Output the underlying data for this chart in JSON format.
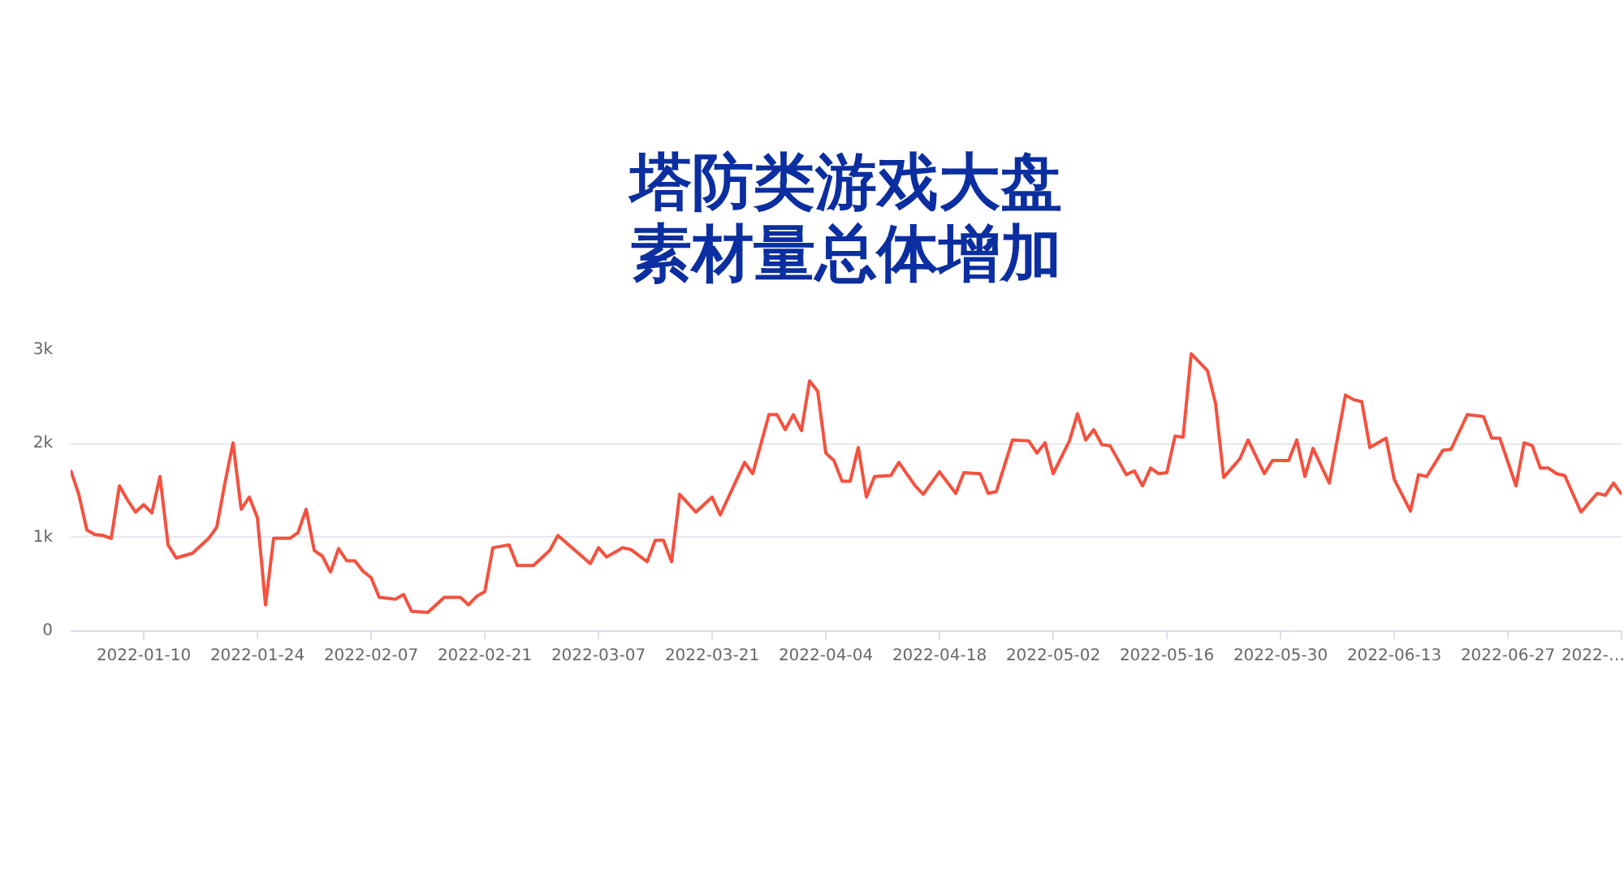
{
  "chart_data": {
    "type": "line",
    "title": "塔防类游戏大盘素材量总体增加",
    "x": [
      "2022-01-01",
      "2022-01-02",
      "2022-01-03",
      "2022-01-04",
      "2022-01-05",
      "2022-01-06",
      "2022-01-07",
      "2022-01-08",
      "2022-01-09",
      "2022-01-10",
      "2022-01-11",
      "2022-01-12",
      "2022-01-13",
      "2022-01-14",
      "2022-01-16",
      "2022-01-18",
      "2022-01-19",
      "2022-01-20",
      "2022-01-21",
      "2022-01-22",
      "2022-01-23",
      "2022-01-24",
      "2022-01-25",
      "2022-01-26",
      "2022-01-28",
      "2022-01-29",
      "2022-01-30",
      "2022-01-31",
      "2022-02-01",
      "2022-02-02",
      "2022-02-03",
      "2022-02-04",
      "2022-02-05",
      "2022-02-06",
      "2022-02-07",
      "2022-02-08",
      "2022-02-10",
      "2022-02-11",
      "2022-02-12",
      "2022-02-14",
      "2022-02-16",
      "2022-02-18",
      "2022-02-19",
      "2022-02-20",
      "2022-02-21",
      "2022-02-22",
      "2022-02-24",
      "2022-02-25",
      "2022-02-27",
      "2022-03-01",
      "2022-03-02",
      "2022-03-06",
      "2022-03-07",
      "2022-03-08",
      "2022-03-10",
      "2022-03-11",
      "2022-03-13",
      "2022-03-14",
      "2022-03-15",
      "2022-03-16",
      "2022-03-17",
      "2022-03-19",
      "2022-03-21",
      "2022-03-22",
      "2022-03-25",
      "2022-03-26",
      "2022-03-28",
      "2022-03-29",
      "2022-03-30",
      "2022-03-31",
      "2022-04-01",
      "2022-04-02",
      "2022-04-03",
      "2022-04-04",
      "2022-04-05",
      "2022-04-06",
      "2022-04-07",
      "2022-04-08",
      "2022-04-09",
      "2022-04-10",
      "2022-04-12",
      "2022-04-13",
      "2022-04-15",
      "2022-04-16",
      "2022-04-18",
      "2022-04-20",
      "2022-04-21",
      "2022-04-23",
      "2022-04-24",
      "2022-04-25",
      "2022-04-27",
      "2022-04-29",
      "2022-04-30",
      "2022-05-01",
      "2022-05-02",
      "2022-05-04",
      "2022-05-05",
      "2022-05-06",
      "2022-05-07",
      "2022-05-08",
      "2022-05-09",
      "2022-05-11",
      "2022-05-12",
      "2022-05-13",
      "2022-05-14",
      "2022-05-15",
      "2022-05-16",
      "2022-05-17",
      "2022-05-18",
      "2022-05-19",
      "2022-05-21",
      "2022-05-22",
      "2022-05-23",
      "2022-05-25",
      "2022-05-26",
      "2022-05-28",
      "2022-05-29",
      "2022-05-31",
      "2022-06-01",
      "2022-06-02",
      "2022-06-03",
      "2022-06-05",
      "2022-06-07",
      "2022-06-08",
      "2022-06-09",
      "2022-06-10",
      "2022-06-12",
      "2022-06-13",
      "2022-06-15",
      "2022-06-16",
      "2022-06-17",
      "2022-06-19",
      "2022-06-20",
      "2022-06-22",
      "2022-06-24",
      "2022-06-25",
      "2022-06-26",
      "2022-06-28",
      "2022-06-29",
      "2022-06-30",
      "2022-07-01",
      "2022-07-02",
      "2022-07-03",
      "2022-07-04",
      "2022-07-06",
      "2022-07-08",
      "2022-07-09",
      "2022-07-10",
      "2022-07-11"
    ],
    "series": [
      {
        "color": "#f4513f",
        "values": [
          1720,
          1460,
          1080,
          1030,
          1020,
          990,
          1550,
          1400,
          1270,
          1350,
          1260,
          1650,
          920,
          780,
          830,
          990,
          1110,
          1580,
          2010,
          1300,
          1430,
          1210,
          280,
          990,
          990,
          1050,
          1300,
          860,
          800,
          630,
          880,
          750,
          750,
          640,
          570,
          360,
          340,
          390,
          210,
          200,
          360,
          360,
          280,
          370,
          420,
          890,
          920,
          700,
          700,
          860,
          1020,
          720,
          890,
          790,
          890,
          870,
          740,
          970,
          970,
          740,
          1460,
          1270,
          1430,
          1240,
          1800,
          1680,
          2310,
          2310,
          2150,
          2310,
          2140,
          2670,
          2560,
          1900,
          1820,
          1600,
          1600,
          1960,
          1430,
          1650,
          1660,
          1800,
          1550,
          1460,
          1700,
          1470,
          1690,
          1680,
          1470,
          1490,
          2040,
          2030,
          1900,
          2010,
          1680,
          2030,
          2320,
          2040,
          2150,
          1990,
          1980,
          1670,
          1710,
          1550,
          1740,
          1680,
          1690,
          2080,
          2070,
          2960,
          2780,
          2430,
          1640,
          1840,
          2040,
          1680,
          1820,
          1820,
          2040,
          1650,
          1950,
          1580,
          2520,
          2470,
          2450,
          1960,
          2060,
          1620,
          1280,
          1670,
          1650,
          1930,
          1940,
          2310,
          2290,
          2060,
          2060,
          1550,
          2010,
          1980,
          1740,
          1740,
          1680,
          1660,
          1270,
          1470,
          1450,
          1580,
          1460
        ]
      }
    ],
    "xlim": [
      "2022-01-01",
      "2022-07-11"
    ],
    "xticks": [
      "2022-01-10",
      "2022-01-24",
      "2022-02-07",
      "2022-02-21",
      "2022-03-07",
      "2022-03-21",
      "2022-04-04",
      "2022-04-18",
      "2022-05-02",
      "2022-05-16",
      "2022-05-30",
      "2022-06-13",
      "2022-06-27",
      {
        "value": "2022-07-11",
        "label": "2022-…"
      }
    ],
    "ylim": [
      0,
      3000
    ],
    "yticks": [
      {
        "value": 0,
        "label": "0"
      },
      {
        "value": 1000,
        "label": "1k"
      },
      {
        "value": 2000,
        "label": "2k"
      },
      {
        "value": 3000,
        "label": "3k"
      }
    ],
    "grid": "y",
    "marker": "none",
    "line_style": "solid"
  }
}
